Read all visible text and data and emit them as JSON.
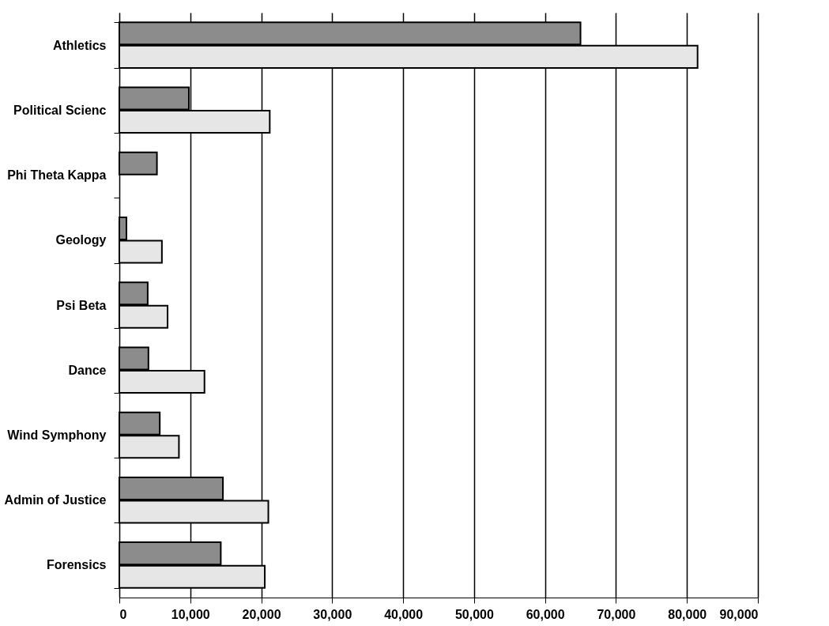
{
  "chart_data": {
    "type": "bar",
    "orientation": "horizontal",
    "categories": [
      "Athletics",
      "Political Scienc",
      "Phi Theta Kappa",
      "Geology",
      "Psi Beta",
      "Dance",
      "Wind Symphony",
      "Admin of Justice",
      "Forensics"
    ],
    "series": [
      {
        "color": "#8c8c8c",
        "values": [
          65000,
          9800,
          5300,
          1000,
          4000,
          4100,
          5700,
          14600,
          14300
        ]
      },
      {
        "color": "#e6e6e6",
        "values": [
          81500,
          21200,
          null,
          6000,
          6800,
          12000,
          8400,
          21000,
          20500
        ]
      }
    ],
    "xlim": [
      0,
      90000
    ],
    "xticks": [
      0,
      {
        "value": 10000,
        "label": "10,000"
      },
      {
        "value": 20000,
        "label": "20,000"
      },
      {
        "value": 30000,
        "label": "30,000"
      },
      {
        "value": 40000,
        "label": "40,000"
      },
      {
        "value": 50000,
        "label": "50,000"
      },
      {
        "value": 60000,
        "label": "60,000"
      },
      {
        "value": 70000,
        "label": "70,000"
      },
      {
        "value": 80000,
        "label": "80,000"
      },
      {
        "value": 90000,
        "label": "90,000"
      }
    ],
    "grid": "x",
    "legend": false
  }
}
